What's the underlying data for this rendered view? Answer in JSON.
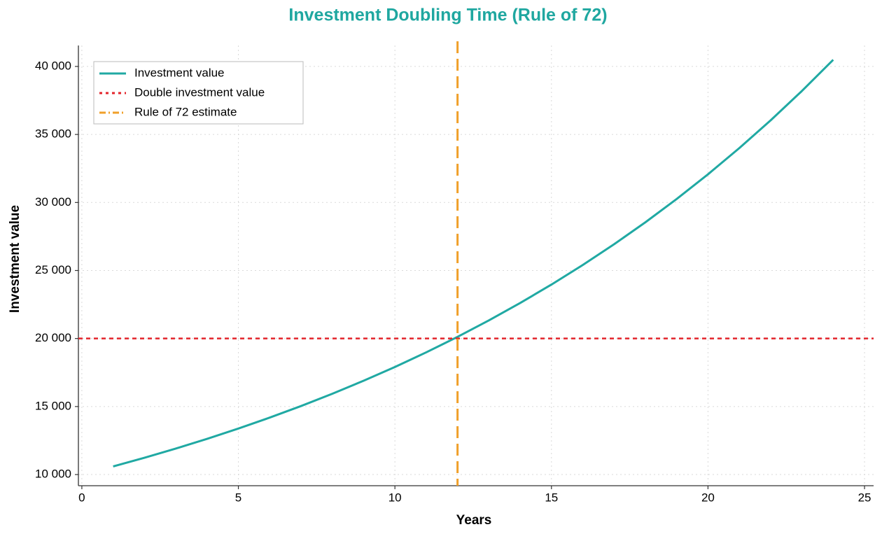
{
  "chart_data": {
    "type": "line",
    "title": "Investment Doubling Time (Rule of 72)",
    "x_label": "Years",
    "y_label": "Investment value",
    "series": [
      {
        "name": "Investment value",
        "color": "#20a9a3",
        "x": [
          1,
          2,
          3,
          4,
          5,
          6,
          7,
          8,
          9,
          10,
          11,
          12,
          13,
          14,
          15,
          16,
          17,
          18,
          19,
          20,
          21,
          22,
          23,
          24
        ],
        "values": [
          10600,
          11236,
          11910,
          12625,
          13382,
          14185,
          15036,
          15938,
          16895,
          17908,
          18983,
          20122,
          21329,
          22609,
          23966,
          25404,
          26928,
          28543,
          30256,
          32071,
          33996,
          36035,
          38197,
          40489
        ]
      }
    ],
    "hline": {
      "name": "Double investment value",
      "value": 20000,
      "color": "#e3242b"
    },
    "vline": {
      "name": "Rule of 72 estimate",
      "value": 12,
      "color": "#f0a02a"
    },
    "xlim": [
      -0.11,
      25.29
    ],
    "ylim": [
      9180,
      41540
    ],
    "xticks": [
      0,
      5,
      10,
      15,
      20,
      25
    ],
    "yticks": [
      {
        "value": 10000,
        "label": "10 000"
      },
      {
        "value": 15000,
        "label": "15 000"
      },
      {
        "value": 20000,
        "label": "20 000"
      },
      {
        "value": 25000,
        "label": "25 000"
      },
      {
        "value": 30000,
        "label": "30 000"
      },
      {
        "value": 35000,
        "label": "35 000"
      },
      {
        "value": 40000,
        "label": "40 000"
      }
    ],
    "grid": true,
    "legend": "upper left"
  }
}
